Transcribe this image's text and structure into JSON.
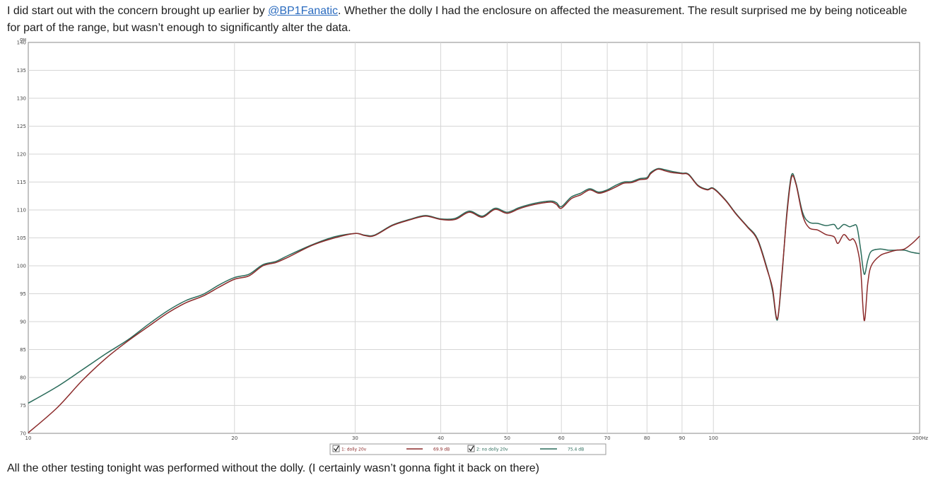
{
  "post": {
    "para1_before": "I did start out with the concern brought up earlier by ",
    "mention": "@BP1Fanatic",
    "para1_after": ". Whether the dolly I had the enclosure on affected the measurement. The result surprised me by being noticeable for part of the range, but wasn’t enough to significantly alter the data.",
    "para2": "All the other testing tonight was performed without the dolly. (I certainly wasn’t gonna fight it back on there)"
  },
  "chart_data": {
    "type": "line",
    "title": "",
    "xlabel": "",
    "ylabel": "dB",
    "x_unit": "Hz",
    "x_scale": "log",
    "xlim": [
      10,
      200
    ],
    "ylim": [
      70,
      140
    ],
    "y_ticks": [
      70,
      75,
      80,
      85,
      90,
      95,
      100,
      105,
      110,
      115,
      120,
      125,
      130,
      135,
      140
    ],
    "x_ticks": [
      10,
      20,
      30,
      40,
      50,
      60,
      70,
      80,
      90,
      100,
      200
    ],
    "x_tick_labels": [
      "10",
      "20",
      "30",
      "40",
      "50",
      "60",
      "70",
      "80",
      "90",
      "100",
      "200Hz"
    ],
    "y_unit_label": "dB",
    "grid": true,
    "legend_position": "bottom-center",
    "series": [
      {
        "name": "1: dolly 20v",
        "legend_value": "69.9 dB",
        "color": "#8b2a2a",
        "checked": true,
        "x": [
          10,
          11,
          12,
          13,
          14,
          15,
          16,
          17,
          18,
          19,
          20,
          21,
          22,
          23,
          24,
          26,
          28,
          30,
          31,
          32,
          34,
          36,
          38,
          40,
          42,
          44,
          46,
          48,
          50,
          52,
          54,
          56,
          58,
          59,
          60,
          62,
          64,
          66,
          68,
          70,
          72,
          74,
          76,
          78,
          80,
          81,
          83,
          85,
          87,
          90,
          92,
          95,
          98,
          100,
          104,
          108,
          112,
          116,
          120,
          122,
          124,
          126,
          128,
          130,
          132,
          135,
          138,
          142,
          146,
          150,
          152,
          155,
          158,
          160,
          162,
          164,
          166,
          168,
          170,
          175,
          180,
          185,
          190,
          195,
          200
        ],
        "y": [
          70.1,
          74.5,
          79.5,
          83.5,
          86.6,
          89.2,
          91.6,
          93.4,
          94.6,
          96.2,
          97.6,
          98.2,
          100.0,
          100.6,
          101.6,
          103.7,
          105.0,
          105.8,
          105.4,
          105.4,
          107.2,
          108.2,
          108.9,
          108.3,
          108.3,
          109.6,
          108.7,
          110.1,
          109.4,
          110.2,
          110.8,
          111.2,
          111.4,
          111.0,
          110.3,
          112.0,
          112.7,
          113.6,
          113.0,
          113.4,
          114.1,
          114.8,
          114.9,
          115.4,
          115.6,
          116.5,
          117.3,
          117.0,
          116.7,
          116.5,
          116.3,
          114.3,
          113.6,
          113.8,
          111.8,
          109.2,
          107.0,
          104.6,
          99.0,
          96.0,
          90.5,
          99.0,
          109.0,
          115.8,
          114.6,
          109.0,
          106.8,
          106.4,
          105.6,
          105.2,
          104.0,
          105.6,
          104.6,
          104.8,
          103.4,
          99.6,
          90.2,
          96.8,
          100.0,
          101.8,
          102.4,
          102.8,
          103.0,
          104.0,
          105.3
        ]
      },
      {
        "name": "2: no dolly 20v",
        "legend_value": "75.4 dB",
        "color": "#2a6b5a",
        "checked": true,
        "x": [
          10,
          11,
          12,
          13,
          14,
          15,
          16,
          17,
          18,
          19,
          20,
          21,
          22,
          23,
          24,
          26,
          28,
          30,
          31,
          32,
          34,
          36,
          38,
          40,
          42,
          44,
          46,
          48,
          50,
          52,
          54,
          56,
          58,
          59,
          60,
          62,
          64,
          66,
          68,
          70,
          72,
          74,
          76,
          78,
          80,
          81,
          83,
          85,
          87,
          90,
          92,
          95,
          98,
          100,
          104,
          108,
          112,
          116,
          120,
          122,
          124,
          126,
          128,
          130,
          132,
          135,
          138,
          142,
          146,
          150,
          152,
          155,
          158,
          160,
          162,
          164,
          166,
          168,
          170,
          175,
          180,
          185,
          190,
          195,
          200
        ],
        "y": [
          75.4,
          78.3,
          81.4,
          84.3,
          86.8,
          89.6,
          92.0,
          93.8,
          94.9,
          96.6,
          97.9,
          98.5,
          100.2,
          100.8,
          101.9,
          103.8,
          105.2,
          105.8,
          105.5,
          105.5,
          107.3,
          108.3,
          109.0,
          108.4,
          108.5,
          109.8,
          108.9,
          110.3,
          109.6,
          110.4,
          111.0,
          111.4,
          111.6,
          111.3,
          110.6,
          112.3,
          113.0,
          113.8,
          113.2,
          113.6,
          114.4,
          115.0,
          115.1,
          115.6,
          115.8,
          116.7,
          117.4,
          117.2,
          116.9,
          116.6,
          116.4,
          114.4,
          113.7,
          113.9,
          111.9,
          109.3,
          107.1,
          104.8,
          99.2,
          95.5,
          90.3,
          98.6,
          109.5,
          116.2,
          114.8,
          109.5,
          107.8,
          107.6,
          107.2,
          107.4,
          106.6,
          107.4,
          107.0,
          107.2,
          107.0,
          103.0,
          98.5,
          101.0,
          102.6,
          103.0,
          102.8,
          102.8,
          102.8,
          102.4,
          102.2
        ]
      }
    ]
  }
}
